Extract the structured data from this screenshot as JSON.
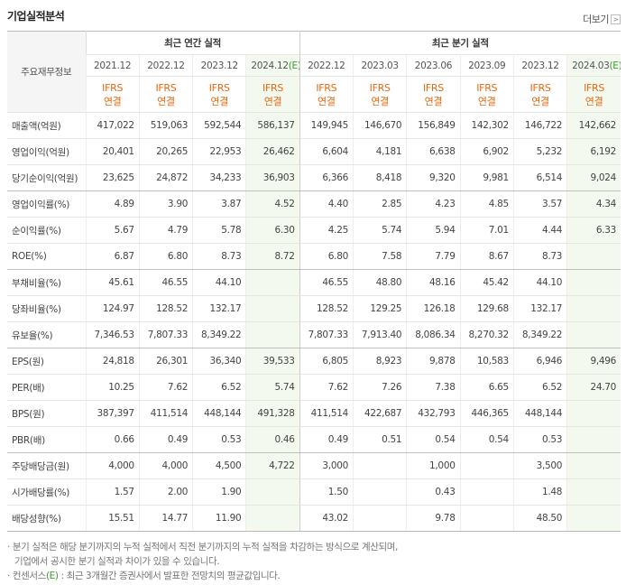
{
  "header": {
    "title": "기업실적분석",
    "more": "더보기"
  },
  "table": {
    "corner": "주요재무정보",
    "groups": [
      {
        "label": "최근 연간 실적",
        "span": 4
      },
      {
        "label": "최근 분기 실적",
        "span": 6
      }
    ],
    "periods": [
      {
        "date": "2021.12"
      },
      {
        "date": "2022.12"
      },
      {
        "date": "2023.12"
      },
      {
        "date": "2024.12",
        "mark": "(E)"
      },
      {
        "date": "2022.12"
      },
      {
        "date": "2023.03"
      },
      {
        "date": "2023.06"
      },
      {
        "date": "2023.09"
      },
      {
        "date": "2023.12"
      },
      {
        "date": "2024.03",
        "mark": "(E)"
      }
    ],
    "standard": "IFRS",
    "basis": "연결",
    "rows": [
      {
        "label": "매출액(억원)",
        "values": [
          "417,022",
          "519,063",
          "592,544",
          "586,137",
          "149,945",
          "146,670",
          "156,849",
          "142,302",
          "146,722",
          "142,662"
        ]
      },
      {
        "label": "영업이익(억원)",
        "values": [
          "20,401",
          "20,265",
          "22,953",
          "26,462",
          "6,604",
          "4,181",
          "6,638",
          "6,902",
          "5,232",
          "6,192"
        ]
      },
      {
        "label": "당기순이익(억원)",
        "values": [
          "23,625",
          "24,872",
          "34,233",
          "36,903",
          "6,366",
          "8,418",
          "9,320",
          "9,981",
          "6,514",
          "9,024"
        ]
      },
      {
        "label": "영업이익률(%)",
        "values": [
          "4.89",
          "3.90",
          "3.87",
          "4.52",
          "4.40",
          "2.85",
          "4.23",
          "4.85",
          "3.57",
          "4.34"
        ]
      },
      {
        "label": "순이익률(%)",
        "values": [
          "5.67",
          "4.79",
          "5.78",
          "6.30",
          "4.25",
          "5.74",
          "5.94",
          "7.01",
          "4.44",
          "6.33"
        ]
      },
      {
        "label": "ROE(%)",
        "values": [
          "6.87",
          "6.80",
          "8.73",
          "8.72",
          "6.80",
          "7.58",
          "7.79",
          "8.67",
          "8.73",
          null
        ]
      },
      {
        "label": "부채비율(%)",
        "values": [
          "45.61",
          "46.55",
          "44.10",
          null,
          "46.55",
          "48.80",
          "48.16",
          "45.42",
          "44.10",
          null
        ]
      },
      {
        "label": "당좌비율(%)",
        "values": [
          "124.97",
          "128.52",
          "132.17",
          null,
          "128.52",
          "129.25",
          "126.18",
          "129.68",
          "132.17",
          null
        ]
      },
      {
        "label": "유보율(%)",
        "values": [
          "7,346.53",
          "7,807.33",
          "8,349.22",
          null,
          "7,807.33",
          "7,913.40",
          "8,086.34",
          "8,270.32",
          "8,349.22",
          null
        ]
      },
      {
        "label": "EPS(원)",
        "values": [
          "24,818",
          "26,301",
          "36,340",
          "39,533",
          "6,805",
          "8,923",
          "9,878",
          "10,583",
          "6,946",
          "9,496"
        ]
      },
      {
        "label": "PER(배)",
        "values": [
          "10.25",
          "7.62",
          "6.52",
          "5.74",
          "7.62",
          "7.26",
          "7.38",
          "6.65",
          "6.52",
          "24.70"
        ]
      },
      {
        "label": "BPS(원)",
        "values": [
          "387,397",
          "411,514",
          "448,144",
          "491,328",
          "411,514",
          "422,687",
          "432,793",
          "446,365",
          "448,144",
          null
        ]
      },
      {
        "label": "PBR(배)",
        "values": [
          "0.66",
          "0.49",
          "0.53",
          "0.46",
          "0.49",
          "0.51",
          "0.54",
          "0.54",
          "0.53",
          null
        ]
      },
      {
        "label": "주당배당금(원)",
        "values": [
          "4,000",
          "4,000",
          "4,500",
          "4,722",
          "3,000",
          null,
          "1,000",
          null,
          "3,500",
          null
        ]
      },
      {
        "label": "시가배당률(%)",
        "values": [
          "1.57",
          "2.00",
          "1.90",
          null,
          "1.50",
          null,
          "0.43",
          null,
          "1.48",
          null
        ]
      },
      {
        "label": "배당성향(%)",
        "values": [
          "15.51",
          "14.77",
          "11.90",
          null,
          "43.02",
          null,
          "9.78",
          null,
          "48.50",
          null
        ]
      }
    ]
  },
  "notes": {
    "method": [
      "분기 실적은 해당 분기까지의 누적 실적에서 직전 분기까지의 누적 실적을 차감하는 방식으로 계산되며,",
      "기업에서 공시한 분기 실적과 차이가 있을 수 있습니다."
    ],
    "consensus": {
      "term": "컨센서스",
      "mark": "(E)",
      "text": " : 최근 3개월간 증권사에서 발표한 전망치의 평균값입니다."
    }
  }
}
